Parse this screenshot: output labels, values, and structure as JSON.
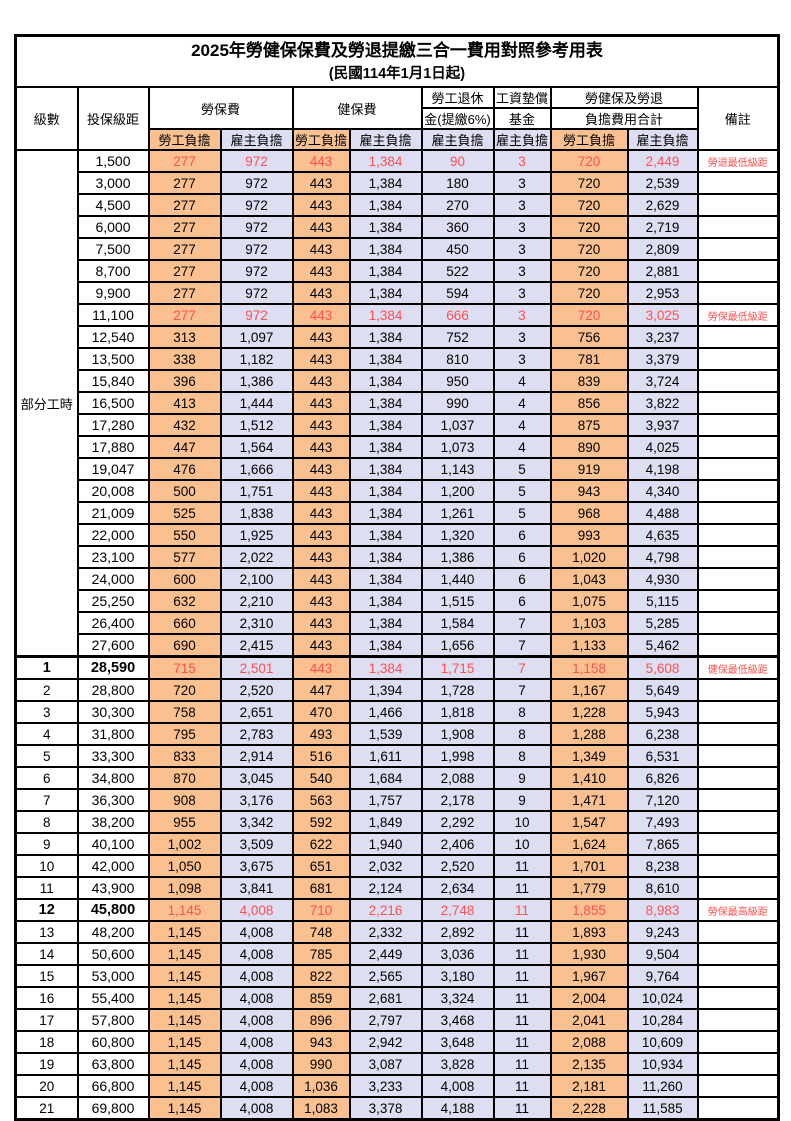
{
  "title": "2025年勞健保保費及勞退提繳三合一費用對照參考用表",
  "subtitle": "(民國114年1月1日起)",
  "header": {
    "level": "級數",
    "bracket": "投保級距",
    "labor_insurance": "勞保費",
    "health_insurance": "健保費",
    "pension_line1": "勞工退休",
    "pension_line2": "金(提繳6%)",
    "wage_fund_line1": "工資墊償",
    "wage_fund_line2": "基金",
    "total_line1": "勞健保及勞退",
    "total_line2": "負擔費用合計",
    "note": "備註",
    "employee": "勞工負擔",
    "employer": "雇主負擔"
  },
  "part_time_label": "部分工時",
  "part_time_rowspan": 23,
  "colors": {
    "employee_bg": "#FAC08F",
    "employer_bg": "#DEDEF2",
    "highlight_text": "#FF5050",
    "border": "#000000"
  },
  "notes": {
    "pension_min": "勞退最低級距",
    "labor_min": "勞保最低級距",
    "health_min": "健保最低級距",
    "labor_max": "勞保最高級距"
  },
  "rows": [
    {
      "bracket": "1,500",
      "li_emp": "277",
      "li_er": "972",
      "hi_emp": "443",
      "hi_er": "1,384",
      "pension": "90",
      "fund": "3",
      "tot_emp": "720",
      "tot_er": "2,449",
      "note": "勞退最低級距",
      "hl": true
    },
    {
      "bracket": "3,000",
      "li_emp": "277",
      "li_er": "972",
      "hi_emp": "443",
      "hi_er": "1,384",
      "pension": "180",
      "fund": "3",
      "tot_emp": "720",
      "tot_er": "2,539"
    },
    {
      "bracket": "4,500",
      "li_emp": "277",
      "li_er": "972",
      "hi_emp": "443",
      "hi_er": "1,384",
      "pension": "270",
      "fund": "3",
      "tot_emp": "720",
      "tot_er": "2,629"
    },
    {
      "bracket": "6,000",
      "li_emp": "277",
      "li_er": "972",
      "hi_emp": "443",
      "hi_er": "1,384",
      "pension": "360",
      "fund": "3",
      "tot_emp": "720",
      "tot_er": "2,719"
    },
    {
      "bracket": "7,500",
      "li_emp": "277",
      "li_er": "972",
      "hi_emp": "443",
      "hi_er": "1,384",
      "pension": "450",
      "fund": "3",
      "tot_emp": "720",
      "tot_er": "2,809"
    },
    {
      "bracket": "8,700",
      "li_emp": "277",
      "li_er": "972",
      "hi_emp": "443",
      "hi_er": "1,384",
      "pension": "522",
      "fund": "3",
      "tot_emp": "720",
      "tot_er": "2,881"
    },
    {
      "bracket": "9,900",
      "li_emp": "277",
      "li_er": "972",
      "hi_emp": "443",
      "hi_er": "1,384",
      "pension": "594",
      "fund": "3",
      "tot_emp": "720",
      "tot_er": "2,953"
    },
    {
      "bracket": "11,100",
      "li_emp": "277",
      "li_er": "972",
      "hi_emp": "443",
      "hi_er": "1,384",
      "pension": "666",
      "fund": "3",
      "tot_emp": "720",
      "tot_er": "3,025",
      "note": "勞保最低級距",
      "hl": true
    },
    {
      "bracket": "12,540",
      "li_emp": "313",
      "li_er": "1,097",
      "hi_emp": "443",
      "hi_er": "1,384",
      "pension": "752",
      "fund": "3",
      "tot_emp": "756",
      "tot_er": "3,237"
    },
    {
      "bracket": "13,500",
      "li_emp": "338",
      "li_er": "1,182",
      "hi_emp": "443",
      "hi_er": "1,384",
      "pension": "810",
      "fund": "3",
      "tot_emp": "781",
      "tot_er": "3,379"
    },
    {
      "bracket": "15,840",
      "li_emp": "396",
      "li_er": "1,386",
      "hi_emp": "443",
      "hi_er": "1,384",
      "pension": "950",
      "fund": "4",
      "tot_emp": "839",
      "tot_er": "3,724"
    },
    {
      "bracket": "16,500",
      "li_emp": "413",
      "li_er": "1,444",
      "hi_emp": "443",
      "hi_er": "1,384",
      "pension": "990",
      "fund": "4",
      "tot_emp": "856",
      "tot_er": "3,822"
    },
    {
      "bracket": "17,280",
      "li_emp": "432",
      "li_er": "1,512",
      "hi_emp": "443",
      "hi_er": "1,384",
      "pension": "1,037",
      "fund": "4",
      "tot_emp": "875",
      "tot_er": "3,937"
    },
    {
      "bracket": "17,880",
      "li_emp": "447",
      "li_er": "1,564",
      "hi_emp": "443",
      "hi_er": "1,384",
      "pension": "1,073",
      "fund": "4",
      "tot_emp": "890",
      "tot_er": "4,025"
    },
    {
      "bracket": "19,047",
      "li_emp": "476",
      "li_er": "1,666",
      "hi_emp": "443",
      "hi_er": "1,384",
      "pension": "1,143",
      "fund": "5",
      "tot_emp": "919",
      "tot_er": "4,198"
    },
    {
      "bracket": "20,008",
      "li_emp": "500",
      "li_er": "1,751",
      "hi_emp": "443",
      "hi_er": "1,384",
      "pension": "1,200",
      "fund": "5",
      "tot_emp": "943",
      "tot_er": "4,340"
    },
    {
      "bracket": "21,009",
      "li_emp": "525",
      "li_er": "1,838",
      "hi_emp": "443",
      "hi_er": "1,384",
      "pension": "1,261",
      "fund": "5",
      "tot_emp": "968",
      "tot_er": "4,488"
    },
    {
      "bracket": "22,000",
      "li_emp": "550",
      "li_er": "1,925",
      "hi_emp": "443",
      "hi_er": "1,384",
      "pension": "1,320",
      "fund": "6",
      "tot_emp": "993",
      "tot_er": "4,635"
    },
    {
      "bracket": "23,100",
      "li_emp": "577",
      "li_er": "2,022",
      "hi_emp": "443",
      "hi_er": "1,384",
      "pension": "1,386",
      "fund": "6",
      "tot_emp": "1,020",
      "tot_er": "4,798"
    },
    {
      "bracket": "24,000",
      "li_emp": "600",
      "li_er": "2,100",
      "hi_emp": "443",
      "hi_er": "1,384",
      "pension": "1,440",
      "fund": "6",
      "tot_emp": "1,043",
      "tot_er": "4,930"
    },
    {
      "bracket": "25,250",
      "li_emp": "632",
      "li_er": "2,210",
      "hi_emp": "443",
      "hi_er": "1,384",
      "pension": "1,515",
      "fund": "6",
      "tot_emp": "1,075",
      "tot_er": "5,115"
    },
    {
      "bracket": "26,400",
      "li_emp": "660",
      "li_er": "2,310",
      "hi_emp": "443",
      "hi_er": "1,384",
      "pension": "1,584",
      "fund": "7",
      "tot_emp": "1,103",
      "tot_er": "5,285"
    },
    {
      "bracket": "27,600",
      "li_emp": "690",
      "li_er": "2,415",
      "hi_emp": "443",
      "hi_er": "1,384",
      "pension": "1,656",
      "fund": "7",
      "tot_emp": "1,133",
      "tot_er": "5,462"
    },
    {
      "level": "1",
      "bracket": "28,590",
      "li_emp": "715",
      "li_er": "2,501",
      "hi_emp": "443",
      "hi_er": "1,384",
      "pension": "1,715",
      "fund": "7",
      "tot_emp": "1,158",
      "tot_er": "5,608",
      "note": "健保最低級距",
      "hl": true,
      "bold": true,
      "thick_top": true
    },
    {
      "level": "2",
      "bracket": "28,800",
      "li_emp": "720",
      "li_er": "2,520",
      "hi_emp": "447",
      "hi_er": "1,394",
      "pension": "1,728",
      "fund": "7",
      "tot_emp": "1,167",
      "tot_er": "5,649"
    },
    {
      "level": "3",
      "bracket": "30,300",
      "li_emp": "758",
      "li_er": "2,651",
      "hi_emp": "470",
      "hi_er": "1,466",
      "pension": "1,818",
      "fund": "8",
      "tot_emp": "1,228",
      "tot_er": "5,943"
    },
    {
      "level": "4",
      "bracket": "31,800",
      "li_emp": "795",
      "li_er": "2,783",
      "hi_emp": "493",
      "hi_er": "1,539",
      "pension": "1,908",
      "fund": "8",
      "tot_emp": "1,288",
      "tot_er": "6,238"
    },
    {
      "level": "5",
      "bracket": "33,300",
      "li_emp": "833",
      "li_er": "2,914",
      "hi_emp": "516",
      "hi_er": "1,611",
      "pension": "1,998",
      "fund": "8",
      "tot_emp": "1,349",
      "tot_er": "6,531"
    },
    {
      "level": "6",
      "bracket": "34,800",
      "li_emp": "870",
      "li_er": "3,045",
      "hi_emp": "540",
      "hi_er": "1,684",
      "pension": "2,088",
      "fund": "9",
      "tot_emp": "1,410",
      "tot_er": "6,826"
    },
    {
      "level": "7",
      "bracket": "36,300",
      "li_emp": "908",
      "li_er": "3,176",
      "hi_emp": "563",
      "hi_er": "1,757",
      "pension": "2,178",
      "fund": "9",
      "tot_emp": "1,471",
      "tot_er": "7,120"
    },
    {
      "level": "8",
      "bracket": "38,200",
      "li_emp": "955",
      "li_er": "3,342",
      "hi_emp": "592",
      "hi_er": "1,849",
      "pension": "2,292",
      "fund": "10",
      "tot_emp": "1,547",
      "tot_er": "7,493"
    },
    {
      "level": "9",
      "bracket": "40,100",
      "li_emp": "1,002",
      "li_er": "3,509",
      "hi_emp": "622",
      "hi_er": "1,940",
      "pension": "2,406",
      "fund": "10",
      "tot_emp": "1,624",
      "tot_er": "7,865"
    },
    {
      "level": "10",
      "bracket": "42,000",
      "li_emp": "1,050",
      "li_er": "3,675",
      "hi_emp": "651",
      "hi_er": "2,032",
      "pension": "2,520",
      "fund": "11",
      "tot_emp": "1,701",
      "tot_er": "8,238"
    },
    {
      "level": "11",
      "bracket": "43,900",
      "li_emp": "1,098",
      "li_er": "3,841",
      "hi_emp": "681",
      "hi_er": "2,124",
      "pension": "2,634",
      "fund": "11",
      "tot_emp": "1,779",
      "tot_er": "8,610"
    },
    {
      "level": "12",
      "bracket": "45,800",
      "li_emp": "1,145",
      "li_er": "4,008",
      "hi_emp": "710",
      "hi_er": "2,216",
      "pension": "2,748",
      "fund": "11",
      "tot_emp": "1,855",
      "tot_er": "8,983",
      "note": "勞保最高級距",
      "hl": true,
      "bold": true
    },
    {
      "level": "13",
      "bracket": "48,200",
      "li_emp": "1,145",
      "li_er": "4,008",
      "hi_emp": "748",
      "hi_er": "2,332",
      "pension": "2,892",
      "fund": "11",
      "tot_emp": "1,893",
      "tot_er": "9,243"
    },
    {
      "level": "14",
      "bracket": "50,600",
      "li_emp": "1,145",
      "li_er": "4,008",
      "hi_emp": "785",
      "hi_er": "2,449",
      "pension": "3,036",
      "fund": "11",
      "tot_emp": "1,930",
      "tot_er": "9,504"
    },
    {
      "level": "15",
      "bracket": "53,000",
      "li_emp": "1,145",
      "li_er": "4,008",
      "hi_emp": "822",
      "hi_er": "2,565",
      "pension": "3,180",
      "fund": "11",
      "tot_emp": "1,967",
      "tot_er": "9,764"
    },
    {
      "level": "16",
      "bracket": "55,400",
      "li_emp": "1,145",
      "li_er": "4,008",
      "hi_emp": "859",
      "hi_er": "2,681",
      "pension": "3,324",
      "fund": "11",
      "tot_emp": "2,004",
      "tot_er": "10,024"
    },
    {
      "level": "17",
      "bracket": "57,800",
      "li_emp": "1,145",
      "li_er": "4,008",
      "hi_emp": "896",
      "hi_er": "2,797",
      "pension": "3,468",
      "fund": "11",
      "tot_emp": "2,041",
      "tot_er": "10,284"
    },
    {
      "level": "18",
      "bracket": "60,800",
      "li_emp": "1,145",
      "li_er": "4,008",
      "hi_emp": "943",
      "hi_er": "2,942",
      "pension": "3,648",
      "fund": "11",
      "tot_emp": "2,088",
      "tot_er": "10,609"
    },
    {
      "level": "19",
      "bracket": "63,800",
      "li_emp": "1,145",
      "li_er": "4,008",
      "hi_emp": "990",
      "hi_er": "3,087",
      "pension": "3,828",
      "fund": "11",
      "tot_emp": "2,135",
      "tot_er": "10,934"
    },
    {
      "level": "20",
      "bracket": "66,800",
      "li_emp": "1,145",
      "li_er": "4,008",
      "hi_emp": "1,036",
      "hi_er": "3,233",
      "pension": "4,008",
      "fund": "11",
      "tot_emp": "2,181",
      "tot_er": "11,260"
    },
    {
      "level": "21",
      "bracket": "69,800",
      "li_emp": "1,145",
      "li_er": "4,008",
      "hi_emp": "1,083",
      "hi_er": "3,378",
      "pension": "4,188",
      "fund": "11",
      "tot_emp": "2,228",
      "tot_er": "11,585"
    }
  ]
}
